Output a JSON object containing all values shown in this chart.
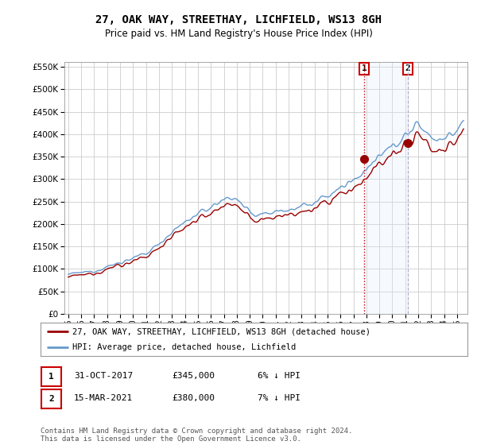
{
  "title": "27, OAK WAY, STREETHAY, LICHFIELD, WS13 8GH",
  "subtitle": "Price paid vs. HM Land Registry's House Price Index (HPI)",
  "legend_entry1": "27, OAK WAY, STREETHAY, LICHFIELD, WS13 8GH (detached house)",
  "legend_entry2": "HPI: Average price, detached house, Lichfield",
  "annotation1_label": "1",
  "annotation1_date": "31-OCT-2017",
  "annotation1_price": "£345,000",
  "annotation1_hpi": "6% ↓ HPI",
  "annotation2_label": "2",
  "annotation2_date": "15-MAR-2021",
  "annotation2_price": "£380,000",
  "annotation2_hpi": "7% ↓ HPI",
  "footer": "Contains HM Land Registry data © Crown copyright and database right 2024.\nThis data is licensed under the Open Government Licence v3.0.",
  "hpi_color": "#6699cc",
  "price_color": "#990000",
  "vline1_color": "#cc0000",
  "vline2_color": "#aaaacc",
  "shade_color": "#ddeeff",
  "annotation_box_color": "#cc0000",
  "ylim_min": 0,
  "ylim_max": 560000,
  "sale1_year": 2017.83,
  "sale1_price": 345000,
  "sale2_year": 2021.2,
  "sale2_price": 380000
}
